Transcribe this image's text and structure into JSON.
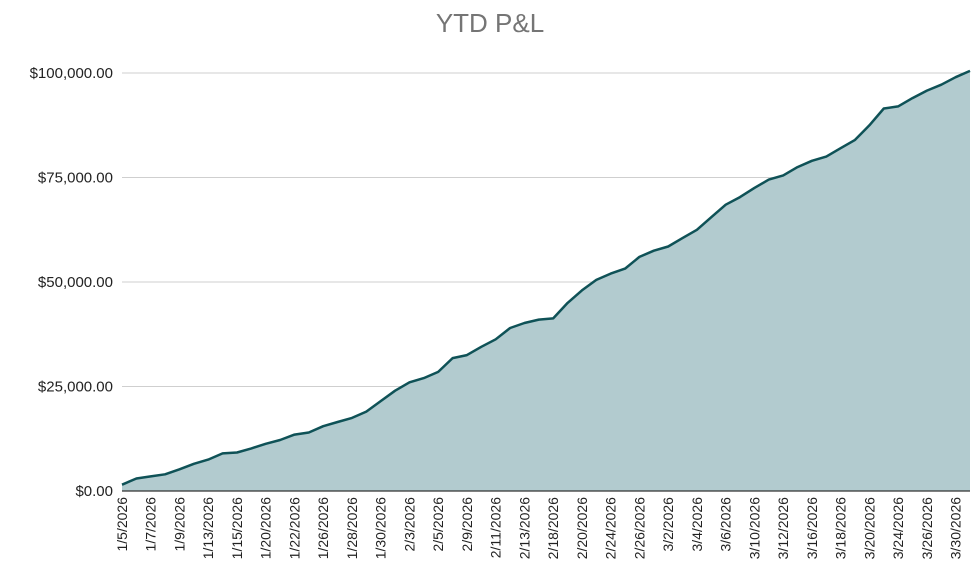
{
  "chart_data": {
    "type": "area",
    "title": "YTD P&L",
    "xlabel": "",
    "ylabel": "",
    "ylim": [
      0,
      100000
    ],
    "yticks": [
      0,
      25000,
      50000,
      75000,
      100000
    ],
    "ytick_labels": [
      "$0.00",
      "$25,000.00",
      "$50,000.00",
      "$75,000.00",
      "$100,000.00"
    ],
    "grid": true,
    "legend": "none",
    "line_color": "#0f5257",
    "fill_color": "#b2cbcf",
    "x": [
      "1/5/2026",
      "1/6/2026",
      "1/7/2026",
      "1/8/2026",
      "1/9/2026",
      "1/12/2026",
      "1/13/2026",
      "1/14/2026",
      "1/15/2026",
      "1/16/2026",
      "1/20/2026",
      "1/21/2026",
      "1/22/2026",
      "1/23/2026",
      "1/26/2026",
      "1/27/2026",
      "1/28/2026",
      "1/29/2026",
      "1/30/2026",
      "2/2/2026",
      "2/3/2026",
      "2/4/2026",
      "2/5/2026",
      "2/6/2026",
      "2/9/2026",
      "2/10/2026",
      "2/11/2026",
      "2/12/2026",
      "2/13/2026",
      "2/17/2026",
      "2/18/2026",
      "2/19/2026",
      "2/20/2026",
      "2/23/2026",
      "2/24/2026",
      "2/25/2026",
      "2/26/2026",
      "2/27/2026",
      "3/2/2026",
      "3/3/2026",
      "3/4/2026",
      "3/5/2026",
      "3/6/2026",
      "3/9/2026",
      "3/10/2026",
      "3/11/2026",
      "3/12/2026",
      "3/13/2026",
      "3/16/2026",
      "3/17/2026",
      "3/18/2026",
      "3/19/2026",
      "3/20/2026",
      "3/23/2026",
      "3/24/2026",
      "3/25/2026",
      "3/26/2026",
      "3/27/2026",
      "3/30/2026",
      "3/31/2026"
    ],
    "x_tick_labels": [
      "1/5/2026",
      "1/7/2026",
      "1/9/2026",
      "1/13/2026",
      "1/15/2026",
      "1/20/2026",
      "1/22/2026",
      "1/26/2026",
      "1/28/2026",
      "1/30/2026",
      "2/3/2026",
      "2/5/2026",
      "2/9/2026",
      "2/11/2026",
      "2/13/2026",
      "2/18/2026",
      "2/20/2026",
      "2/24/2026",
      "2/26/2026",
      "3/2/2026",
      "3/4/2026",
      "3/6/2026",
      "3/10/2026",
      "3/12/2026",
      "3/16/2026",
      "3/18/2026",
      "3/20/2026",
      "3/24/2026",
      "3/26/2026",
      "3/30/2026"
    ],
    "values": [
      1500,
      3000,
      3500,
      4000,
      5200,
      6500,
      7500,
      9000,
      9200,
      10200,
      11300,
      12200,
      13500,
      14000,
      15500,
      16500,
      17500,
      19000,
      21500,
      24000,
      26000,
      27000,
      28500,
      31800,
      32500,
      34500,
      36300,
      39000,
      40200,
      41000,
      41300,
      45000,
      48000,
      50500,
      52000,
      53200,
      56000,
      57500,
      58500,
      60500,
      62500,
      65500,
      68500,
      70300,
      72500,
      74500,
      75500,
      77500,
      79000,
      80000,
      82000,
      84000,
      87500,
      91500,
      92000,
      94000,
      95800,
      97200,
      99000,
      100500
    ]
  }
}
